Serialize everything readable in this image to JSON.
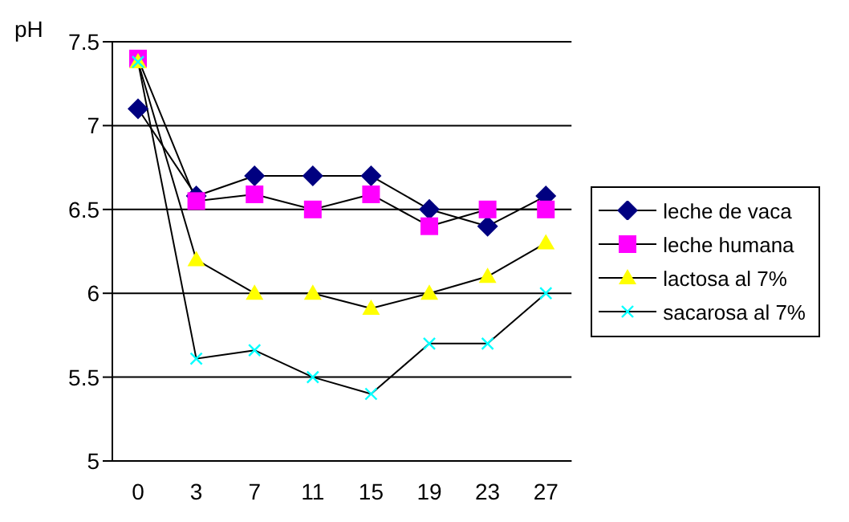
{
  "chart_data": {
    "type": "line",
    "ylabel": "pH",
    "categories": [
      "0",
      "3",
      "7",
      "11",
      "15",
      "19",
      "23",
      "27"
    ],
    "ylim": [
      5,
      7.5
    ],
    "yticks": [
      5,
      5.5,
      6,
      6.5,
      7,
      7.5
    ],
    "grid": "y",
    "legend": "right",
    "series": [
      {
        "name": "leche de vaca",
        "color": "#000080",
        "marker": "diamond",
        "values": [
          7.1,
          6.58,
          6.7,
          6.7,
          6.7,
          6.5,
          6.4,
          6.58
        ]
      },
      {
        "name": "leche humana",
        "color": "#ff00ff",
        "marker": "square",
        "values": [
          7.4,
          6.55,
          6.59,
          6.5,
          6.59,
          6.4,
          6.5,
          6.5
        ]
      },
      {
        "name": "lactosa al 7%",
        "color": "#ffff00",
        "marker": "triangle",
        "values": [
          7.38,
          6.2,
          6.0,
          6.0,
          5.91,
          6.0,
          6.1,
          6.3
        ]
      },
      {
        "name": "sacarosa al 7%",
        "color": "#00ffff",
        "marker": "cross",
        "values": [
          7.38,
          5.61,
          5.66,
          5.5,
          5.4,
          5.7,
          5.7,
          6.0
        ]
      }
    ]
  }
}
